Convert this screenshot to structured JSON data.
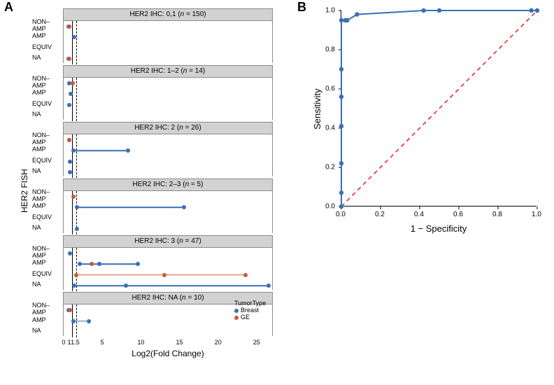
{
  "colors": {
    "breast": "#3a6fb7",
    "ge": "#c85a3c",
    "strip_bg": "#d2d2d2",
    "panel_border": "#8a8a8a",
    "diag_line": "#e4201f",
    "roc_line": "#3a6fb7",
    "axis": "#000000",
    "bg": "#ffffff"
  },
  "panelA": {
    "label": "A",
    "ylab": "HER2 FISH",
    "xlab": "Log2(Fold Change)",
    "x_domain": [
      0,
      27
    ],
    "x_ticks": [
      0,
      1,
      1.5,
      5,
      10,
      15,
      20,
      25
    ],
    "x_tick_labels": [
      "0",
      "",
      "1.5",
      "5",
      "10",
      "15",
      "20",
      "25"
    ],
    "x_extra_tick": {
      "pos": 1,
      "label": "1"
    },
    "vlines": {
      "solid": 1,
      "dashed": 1.5
    },
    "row_categories": [
      "NON–AMP",
      "AMP",
      "EQUIV",
      "NA"
    ],
    "facets": [
      {
        "title": "HER2 IHC: 0,1 (n = 150)",
        "rows": {
          "NON–AMP": [
            {
              "type": "point",
              "x": 0.5,
              "tumor": "breast"
            },
            {
              "type": "point",
              "x": 0.6,
              "tumor": "ge"
            }
          ],
          "AMP": [
            {
              "type": "point",
              "x": 1.3,
              "tumor": "breast"
            }
          ],
          "EQUIV": [],
          "NA": [
            {
              "type": "point",
              "x": 0.5,
              "tumor": "breast"
            },
            {
              "type": "point",
              "x": 0.6,
              "tumor": "ge"
            }
          ]
        }
      },
      {
        "title": "HER2 IHC: 1–2 (n = 14)",
        "rows": {
          "NON–AMP": [
            {
              "type": "point",
              "x": 0.6,
              "tumor": "breast"
            },
            {
              "type": "point",
              "x": 1.1,
              "tumor": "ge"
            }
          ],
          "AMP": [
            {
              "type": "point",
              "x": 0.8,
              "tumor": "breast"
            }
          ],
          "EQUIV": [
            {
              "type": "point",
              "x": 0.6,
              "tumor": "breast"
            }
          ],
          "NA": []
        }
      },
      {
        "title": "HER2 IHC: 2 (n = 26)",
        "rows": {
          "NON–AMP": [
            {
              "type": "point",
              "x": 0.6,
              "tumor": "breast"
            },
            {
              "type": "point",
              "x": 0.6,
              "tumor": "ge"
            }
          ],
          "AMP": [
            {
              "type": "segment",
              "x1": 1.2,
              "x2": 8.2,
              "tumor": "breast"
            },
            {
              "type": "point",
              "x": 1.2,
              "tumor": "breast"
            },
            {
              "type": "point",
              "x": 8.2,
              "tumor": "breast"
            }
          ],
          "EQUIV": [
            {
              "type": "point",
              "x": 0.7,
              "tumor": "breast"
            }
          ],
          "NA": [
            {
              "type": "point",
              "x": 0.7,
              "tumor": "breast"
            }
          ]
        }
      },
      {
        "title": "HER2 IHC: 2–3 (n = 5)",
        "rows": {
          "NON–AMP": [
            {
              "type": "point",
              "x": 1.2,
              "tumor": "ge"
            }
          ],
          "AMP": [
            {
              "type": "segment",
              "x1": 1.6,
              "x2": 15.5,
              "tumor": "breast"
            },
            {
              "type": "point",
              "x": 1.6,
              "tumor": "breast"
            },
            {
              "type": "point",
              "x": 15.5,
              "tumor": "breast"
            }
          ],
          "EQUIV": [],
          "NA": [
            {
              "type": "point",
              "x": 1.6,
              "tumor": "breast"
            }
          ]
        }
      },
      {
        "title": "HER2 IHC: 3 (n = 47)",
        "rows": {
          "NON–AMP": [
            {
              "type": "point",
              "x": 0.7,
              "tumor": "breast"
            }
          ],
          "AMP": [
            {
              "type": "segment",
              "x1": 2.0,
              "x2": 9.5,
              "tumor": "breast"
            },
            {
              "type": "point",
              "x": 2.0,
              "tumor": "breast"
            },
            {
              "type": "point",
              "x": 4.5,
              "tumor": "breast"
            },
            {
              "type": "point",
              "x": 9.5,
              "tumor": "breast"
            },
            {
              "type": "point",
              "x": 3.5,
              "tumor": "ge"
            }
          ],
          "EQUIV": [
            {
              "type": "segment",
              "x1": 1.5,
              "x2": 23.5,
              "tumor": "ge"
            },
            {
              "type": "point",
              "x": 1.5,
              "tumor": "ge"
            },
            {
              "type": "point",
              "x": 13.0,
              "tumor": "ge"
            },
            {
              "type": "point",
              "x": 23.5,
              "tumor": "ge"
            }
          ],
          "NA": [
            {
              "type": "segment",
              "x1": 1.3,
              "x2": 26.5,
              "tumor": "breast"
            },
            {
              "type": "point",
              "x": 1.3,
              "tumor": "breast"
            },
            {
              "type": "point",
              "x": 8.0,
              "tumor": "breast"
            },
            {
              "type": "point",
              "x": 26.5,
              "tumor": "breast"
            }
          ]
        }
      },
      {
        "title": "HER2 IHC: NA (n = 10)",
        "rows": {
          "NON–AMP": [
            {
              "type": "point",
              "x": 0.5,
              "tumor": "breast"
            },
            {
              "type": "point",
              "x": 0.7,
              "tumor": "ge"
            }
          ],
          "AMP": [
            {
              "type": "segment",
              "x1": 1.2,
              "x2": 3.2,
              "tumor": "breast"
            },
            {
              "type": "point",
              "x": 1.2,
              "tumor": "breast"
            },
            {
              "type": "point",
              "x": 3.2,
              "tumor": "breast"
            }
          ],
          "NA": []
        }
      }
    ],
    "legend": {
      "title": "TumorType",
      "items": [
        {
          "label": "Breast",
          "color_key": "breast"
        },
        {
          "label": "GE",
          "color_key": "ge"
        }
      ]
    }
  },
  "panelB": {
    "label": "B",
    "xlab": "1 − Specificity",
    "ylab": "Sensitivity",
    "xlim": [
      0,
      1
    ],
    "ylim": [
      0,
      1
    ],
    "ticks": [
      0.0,
      0.2,
      0.4,
      0.6,
      0.8,
      1.0
    ],
    "roc_points": [
      [
        0.0,
        0.0
      ],
      [
        0.0,
        0.07
      ],
      [
        0.0,
        0.22
      ],
      [
        0.0,
        0.41
      ],
      [
        0.0,
        0.56
      ],
      [
        0.0,
        0.7
      ],
      [
        0.0,
        0.95
      ],
      [
        0.02,
        0.95
      ],
      [
        0.03,
        0.95
      ],
      [
        0.08,
        0.98
      ],
      [
        0.42,
        1.0
      ],
      [
        0.5,
        1.0
      ],
      [
        0.97,
        1.0
      ],
      [
        1.0,
        1.0
      ]
    ],
    "line_width": 2,
    "point_radius": 3.2,
    "diag_dash": "6,5"
  }
}
